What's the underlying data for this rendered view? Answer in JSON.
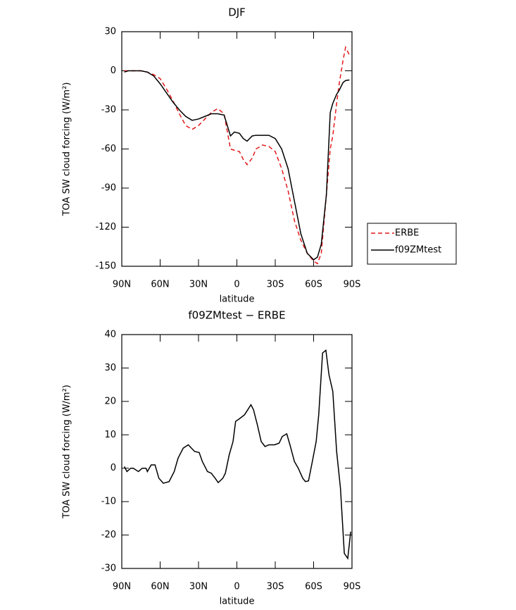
{
  "chart_data": [
    {
      "type": "line",
      "title": "DJF",
      "x_label": "latitude",
      "y_label": "TOA SW cloud forcing (W/m²)",
      "x": [
        88,
        85,
        80,
        75,
        70,
        65,
        60,
        55,
        50,
        45,
        40,
        35,
        30,
        25,
        20,
        15,
        10,
        5,
        2,
        -2,
        -5,
        -8,
        -12,
        -15,
        -20,
        -25,
        -30,
        -35,
        -40,
        -45,
        -50,
        -55,
        -60,
        -63,
        -66,
        -70,
        -73,
        -75,
        -78,
        -80,
        -83,
        -85,
        -88
      ],
      "series": [
        {
          "name": "ERBE",
          "color": "#e41a1c",
          "dash": true,
          "values": [
            0,
            0,
            0,
            0,
            -1,
            -3,
            -6,
            -14,
            -23,
            -33,
            -42,
            -45,
            -42,
            -37,
            -32,
            -29,
            -33,
            -60,
            -61,
            -62,
            -68,
            -72,
            -67,
            -60,
            -57,
            -58,
            -62,
            -75,
            -92,
            -115,
            -130,
            -140,
            -146,
            -148,
            -140,
            -95,
            -60,
            -50,
            -25,
            -10,
            8,
            18,
            12
          ]
        },
        {
          "name": "f09ZMtest",
          "color": "#000000",
          "dash": false,
          "values": [
            -1,
            0,
            0,
            0,
            -1,
            -4,
            -10,
            -17,
            -24,
            -30,
            -35,
            -38,
            -37,
            -35,
            -33,
            -33,
            -34,
            -50,
            -47,
            -48,
            -52,
            -54,
            -50,
            -49.5,
            -49.5,
            -49.5,
            -52,
            -60,
            -75,
            -100,
            -125,
            -140,
            -145,
            -143,
            -133,
            -95,
            -32,
            -25,
            -18,
            -15,
            -9,
            -7.5,
            -7
          ]
        }
      ],
      "xlim": [
        90,
        -90
      ],
      "xticks": [
        {
          "value": 90,
          "label": "90N"
        },
        {
          "value": 60,
          "label": "60N"
        },
        {
          "value": 30,
          "label": "30N"
        },
        0,
        {
          "value": -30,
          "label": "30S"
        },
        {
          "value": -60,
          "label": "60S"
        },
        {
          "value": -90,
          "label": "90S"
        }
      ],
      "ylim": [
        -150,
        30
      ],
      "yticks": [
        -150,
        -120,
        -90,
        -60,
        -30,
        0,
        30
      ],
      "legend": "right"
    },
    {
      "type": "line",
      "title": "f09ZMtest − ERBE",
      "x_label": "latitude",
      "y_label": "TOA SW cloud forcing (W/m²)",
      "x": [
        88,
        86,
        83,
        81,
        77,
        74,
        71,
        70,
        67,
        64,
        61,
        57.5,
        53,
        49,
        46,
        42,
        38,
        35.5,
        33,
        29.5,
        27,
        23,
        20,
        17,
        14.6,
        11,
        9,
        6,
        3,
        1,
        -2,
        -6,
        -11,
        -13,
        -16,
        -19,
        -22,
        -25,
        -29.4,
        -33,
        -35.5,
        -39,
        -41.5,
        -45,
        -48,
        -51.5,
        -53.6,
        -56,
        -59,
        -62,
        -64,
        -67,
        -69.6,
        -72,
        -75,
        -78,
        -81,
        -84,
        -86.7,
        -89
      ],
      "series": [
        {
          "color": "#000000",
          "dash": false,
          "values": [
            0.5,
            -1,
            0,
            0,
            -1,
            0,
            0,
            -1,
            1,
            1,
            -3,
            -4.5,
            -4,
            -1,
            3,
            6,
            7,
            6,
            5,
            4.7,
            2,
            -1,
            -1.5,
            -3,
            -4.3,
            -3,
            -1.5,
            4,
            8,
            14,
            14.8,
            16,
            19,
            17.5,
            13,
            8,
            6.5,
            7,
            7,
            7.5,
            9.5,
            10.3,
            7,
            2,
            0,
            -3,
            -4,
            -3.8,
            2,
            8,
            16,
            34.5,
            35.3,
            28,
            23,
            5,
            -6,
            -25.5,
            -27,
            -19
          ]
        }
      ],
      "xlim": [
        90,
        -90
      ],
      "xticks": [
        {
          "value": 90,
          "label": "90N"
        },
        {
          "value": 60,
          "label": "60N"
        },
        {
          "value": 30,
          "label": "30N"
        },
        0,
        {
          "value": -30,
          "label": "30S"
        },
        {
          "value": -60,
          "label": "60S"
        },
        {
          "value": -90,
          "label": "90S"
        }
      ],
      "ylim": [
        -30,
        40
      ],
      "yticks": [
        -30,
        -20,
        -10,
        0,
        10,
        20,
        30,
        40
      ]
    }
  ]
}
